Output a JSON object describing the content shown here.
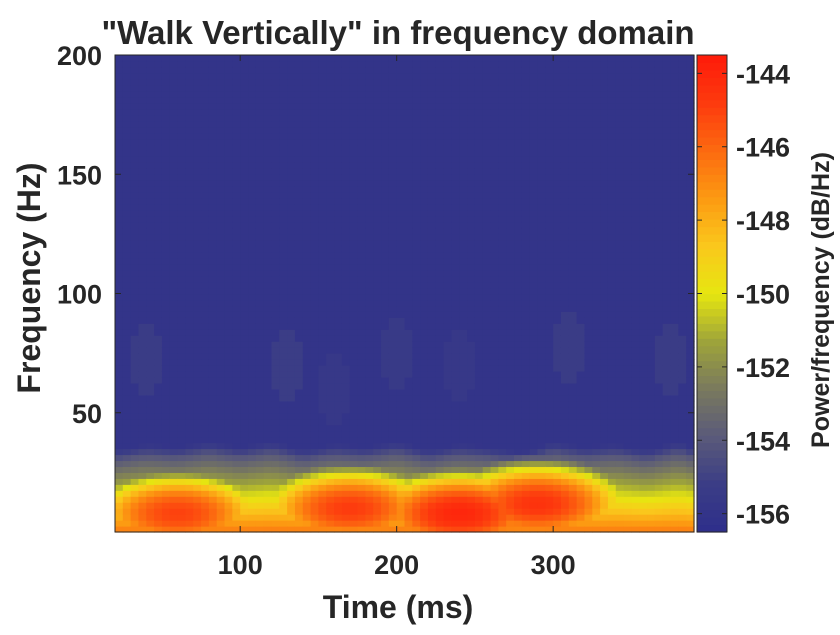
{
  "chart_data": {
    "type": "heatmap",
    "title": "\"Walk Vertically\" in frequency domain",
    "xlabel": "Time (ms)",
    "ylabel": "Frequency (Hz)",
    "colorbar_label": "Power/frequency (dB/Hz)",
    "xlim": [
      20,
      390
    ],
    "ylim": [
      0,
      200
    ],
    "clim": [
      -156.5,
      -143.5
    ],
    "x_ticks": [
      100,
      200,
      300
    ],
    "y_ticks": [
      50,
      100,
      150,
      200
    ],
    "colorbar_ticks": [
      -144,
      -146,
      -148,
      -150,
      -152,
      -154,
      -156
    ],
    "grid": false,
    "background_level_db": -156,
    "band": {
      "description_x_ms": [
        20,
        40,
        60,
        80,
        100,
        120,
        140,
        160,
        180,
        200,
        220,
        240,
        260,
        280,
        300,
        320,
        340,
        360,
        380,
        390
      ],
      "edge_hz": [
        30,
        32,
        31,
        33,
        31,
        33,
        30,
        32,
        31,
        33,
        30,
        32,
        31,
        29,
        33,
        31,
        32,
        30,
        33,
        31
      ]
    },
    "bright_spots": [
      {
        "x": 240,
        "y": 8,
        "value": -144
      },
      {
        "x": 290,
        "y": 12,
        "value": -144.5
      },
      {
        "x": 170,
        "y": 10,
        "value": -144.8
      },
      {
        "x": 60,
        "y": 8,
        "value": -145
      }
    ],
    "weak_features": [
      {
        "x": 40,
        "y": 72,
        "value": -155.3
      },
      {
        "x": 130,
        "y": 70,
        "value": -155.2
      },
      {
        "x": 160,
        "y": 60,
        "value": -155.6
      },
      {
        "x": 200,
        "y": 75,
        "value": -155.5
      },
      {
        "x": 240,
        "y": 70,
        "value": -155.6
      },
      {
        "x": 310,
        "y": 78,
        "value": -155.3
      },
      {
        "x": 375,
        "y": 72,
        "value": -155.3
      }
    ]
  },
  "colors": {
    "axis": "#262626",
    "colormap": [
      "#2e2e8b",
      "#3b3d86",
      "#5a5a7a",
      "#79795e",
      "#9ea43a",
      "#e6e610",
      "#fac81c",
      "#fc9a12",
      "#fc6a10",
      "#fd3a0e",
      "#fe1a0a"
    ]
  }
}
